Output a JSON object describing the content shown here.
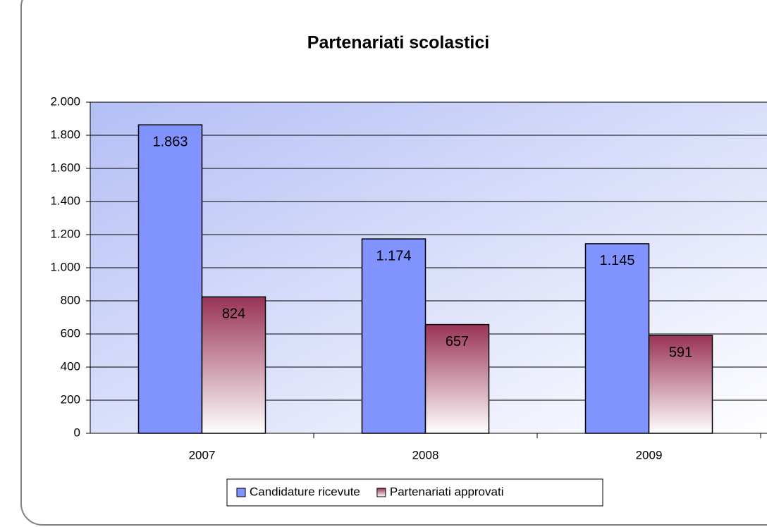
{
  "chart_data": {
    "type": "bar",
    "title": "Partenariati scolastici",
    "categories": [
      "2007",
      "2008",
      "2009"
    ],
    "series": [
      {
        "name": "Candidature ricevute",
        "color": "#8193ff",
        "values": [
          1863,
          1174,
          1145
        ],
        "value_labels": [
          "1.863",
          "1.174",
          "1.145"
        ]
      },
      {
        "name": "Partenariati approvati",
        "color": "#993355",
        "values": [
          824,
          657,
          591
        ],
        "value_labels": [
          "824",
          "657",
          "591"
        ]
      }
    ],
    "ylim": [
      0,
      2000
    ],
    "yticks": [
      0,
      200,
      400,
      600,
      800,
      {
        "value": 1000,
        "label": "1.000"
      },
      {
        "value": 1200,
        "label": "1.200"
      },
      {
        "value": 1400,
        "label": "1.400"
      },
      {
        "value": 1600,
        "label": "1.600"
      },
      {
        "value": 1800,
        "label": "1.800"
      },
      {
        "value": 2000,
        "label": "2.000"
      }
    ],
    "grid": true,
    "legend": "bottom"
  }
}
